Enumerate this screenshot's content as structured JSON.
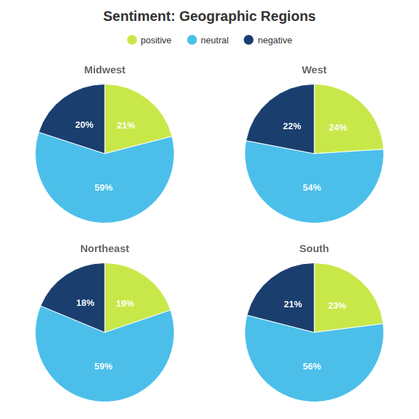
{
  "title": "Sentiment: Geographic Regions",
  "legend": "top",
  "chart_data": [
    {
      "type": "pie",
      "title": "Midwest",
      "categories": [
        "positive",
        "neutral",
        "negative"
      ],
      "values": [
        21,
        59,
        20
      ],
      "value_labels": [
        "21%",
        "59%",
        "20%"
      ],
      "colors": [
        "#c8e84a",
        "#4bbfea",
        "#1a3f6f"
      ],
      "data_labels": true
    },
    {
      "type": "pie",
      "title": "West",
      "categories": [
        "positive",
        "neutral",
        "negative"
      ],
      "values": [
        24,
        54,
        22
      ],
      "value_labels": [
        "24%",
        "54%",
        "22%"
      ],
      "colors": [
        "#c8e84a",
        "#4bbfea",
        "#1a3f6f"
      ],
      "data_labels": true
    },
    {
      "type": "pie",
      "title": "Northeast",
      "categories": [
        "positive",
        "neutral",
        "negative"
      ],
      "values": [
        19,
        59,
        18
      ],
      "value_labels": [
        "19%",
        "59%",
        "18%"
      ],
      "colors": [
        "#c8e84a",
        "#4bbfea",
        "#1a3f6f"
      ],
      "data_labels": true
    },
    {
      "type": "pie",
      "title": "South",
      "categories": [
        "positive",
        "neutral",
        "negative"
      ],
      "values": [
        23,
        56,
        21
      ],
      "value_labels": [
        "23%",
        "56%",
        "21%"
      ],
      "colors": [
        "#c8e84a",
        "#4bbfea",
        "#1a3f6f"
      ],
      "data_labels": true
    }
  ]
}
